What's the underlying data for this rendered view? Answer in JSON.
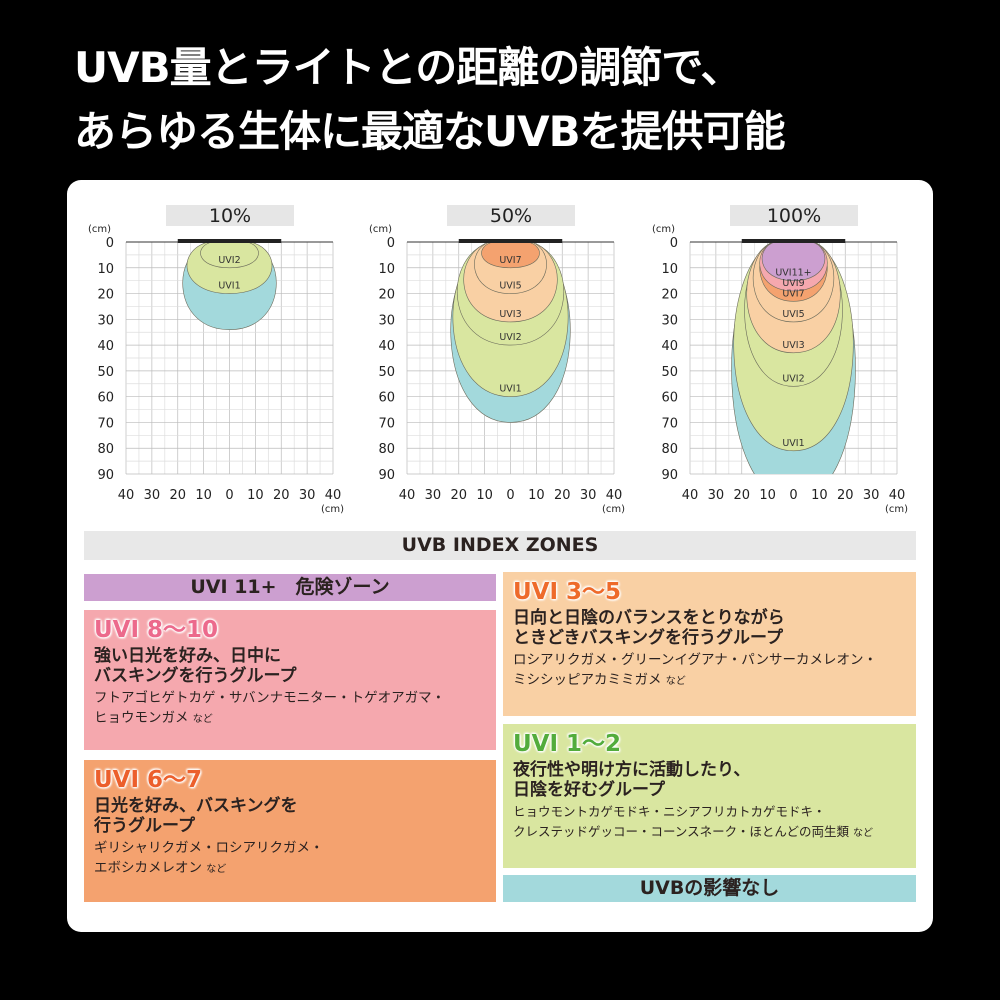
{
  "headline": {
    "line1": "UVB量とライトとの距離の調節で、",
    "line2": "あらゆる生体に最適なUVBを提供可能"
  },
  "colors": {
    "blue": "#a3d9dc",
    "green": "#d9e6a0",
    "lightorange": "#f9d0a4",
    "orange": "#f4a26f",
    "pink": "#f5a8ae",
    "purple": "#cc9fd0"
  },
  "chart_data": [
    {
      "type": "contour",
      "title": "10%",
      "y_unit": "(cm)",
      "x_unit": "(cm)",
      "xlim": [
        -40,
        40
      ],
      "ylim": [
        0,
        90
      ],
      "y_ticks": [
        0,
        10,
        20,
        30,
        40,
        50,
        60,
        70,
        80,
        90
      ],
      "x_ticks": [
        "40",
        "30",
        "20",
        "10",
        "0",
        "10",
        "20",
        "30",
        "40"
      ],
      "zones": [
        {
          "label": "",
          "color": "blue",
          "depth": 34,
          "halfwidth": 20
        },
        {
          "label": "UVI1",
          "color": "green",
          "depth": 20,
          "halfwidth": 18
        },
        {
          "label": "UVI2",
          "color": "green",
          "depth": 10,
          "halfwidth": 12
        }
      ]
    },
    {
      "type": "contour",
      "title": "50%",
      "y_unit": "(cm)",
      "x_unit": "(cm)",
      "xlim": [
        -40,
        40
      ],
      "ylim": [
        0,
        90
      ],
      "y_ticks": [
        0,
        10,
        20,
        30,
        40,
        50,
        60,
        70,
        80,
        90
      ],
      "x_ticks": [
        "40",
        "30",
        "20",
        "10",
        "0",
        "10",
        "20",
        "30",
        "40"
      ],
      "zones": [
        {
          "label": "",
          "color": "blue",
          "depth": 70,
          "halfwidth": 26
        },
        {
          "label": "UVI1",
          "color": "green",
          "depth": 60,
          "halfwidth": 25
        },
        {
          "label": "UVI2",
          "color": "green",
          "depth": 40,
          "halfwidth": 23
        },
        {
          "label": "UVI3",
          "color": "lightorange",
          "depth": 31,
          "halfwidth": 20
        },
        {
          "label": "UVI5",
          "color": "lightorange",
          "depth": 20,
          "halfwidth": 15
        },
        {
          "label": "UVI7",
          "color": "orange",
          "depth": 10,
          "halfwidth": 12
        }
      ]
    },
    {
      "type": "contour",
      "title": "100%",
      "y_unit": "(cm)",
      "x_unit": "(cm)",
      "xlim": [
        -40,
        40
      ],
      "ylim": [
        0,
        90
      ],
      "y_ticks": [
        0,
        10,
        20,
        30,
        40,
        50,
        60,
        70,
        80,
        90
      ],
      "x_ticks": [
        "40",
        "30",
        "20",
        "10",
        "0",
        "10",
        "20",
        "30",
        "40"
      ],
      "zones": [
        {
          "label": "",
          "color": "blue",
          "depth": 100,
          "halfwidth": 27
        },
        {
          "label": "UVI1",
          "color": "green",
          "depth": 81,
          "halfwidth": 26
        },
        {
          "label": "UVI2",
          "color": "green",
          "depth": 56,
          "halfwidth": 21
        },
        {
          "label": "UVI3",
          "color": "lightorange",
          "depth": 43,
          "halfwidth": 20
        },
        {
          "label": "UVI5",
          "color": "lightorange",
          "depth": 31,
          "halfwidth": 17
        },
        {
          "label": "UVI7",
          "color": "orange",
          "depth": 23,
          "halfwidth": 14
        },
        {
          "label": "UVI9",
          "color": "pink",
          "depth": 19,
          "halfwidth": 14
        },
        {
          "label": "UVI11+",
          "color": "purple",
          "depth": 15,
          "halfwidth": 13
        }
      ]
    }
  ],
  "legend": {
    "title": "UVB INDEX ZONES",
    "uvi11": "UVI 11+　危険ゾーン",
    "uvi8": {
      "title": "UVI 8〜10",
      "desc1": "強い日光を好み、日中に",
      "desc2": "バスキングを行うグループ",
      "ex1": "フトアゴヒゲトカゲ・サバンナモニター・トゲオアガマ・",
      "ex2": "ヒョウモンガメ",
      "nado": "など"
    },
    "uvi6": {
      "title": "UVI 6〜7",
      "desc1": "日光を好み、バスキングを",
      "desc2": "行うグループ",
      "ex1": "ギリシャリクガメ・ロシアリクガメ・",
      "ex2": "エボシカメレオン",
      "nado": "など"
    },
    "uvi3": {
      "title": "UVI 3〜5",
      "desc1": "日向と日陰のバランスをとりながら",
      "desc2": "ときどきバスキングを行うグループ",
      "ex1": "ロシアリクガメ・グリーンイグアナ・パンサーカメレオン・",
      "ex2": "ミシシッピアカミミガメ",
      "nado": "など"
    },
    "uvi1": {
      "title": "UVI 1〜2",
      "desc1": "夜行性や明け方に活動したり、",
      "desc2": "日陰を好むグループ",
      "ex1": "ヒョウモントカゲモドキ・ニシアフリカトカゲモドキ・",
      "ex2": "クレステッドゲッコー・コーンスネーク・ほとんどの両生類",
      "nado": "など"
    },
    "none": "UVBの影響なし"
  }
}
